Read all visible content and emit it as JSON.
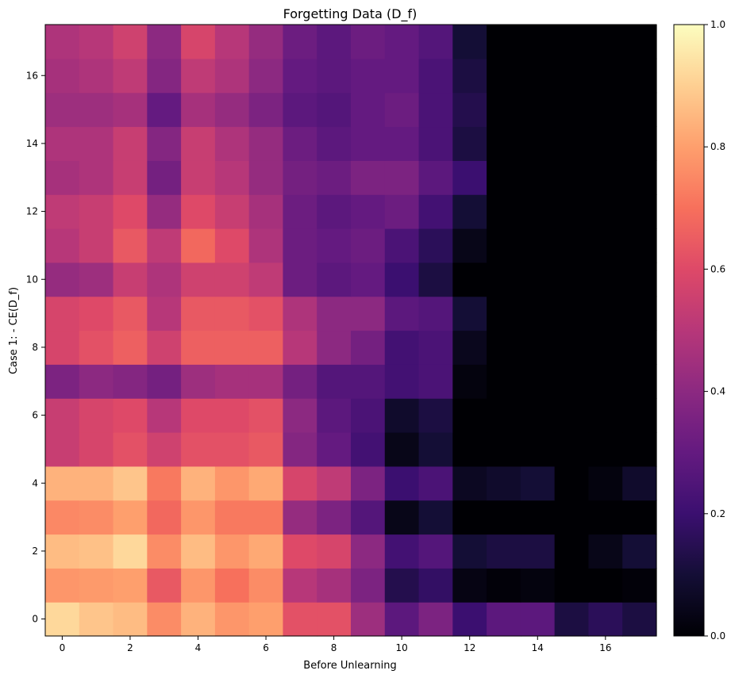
{
  "chart_data": {
    "type": "heatmap",
    "title": "Forgetting Data (D_f)",
    "xlabel": "Before Unlearning",
    "ylabel": "Case 1: - CE(D_f)",
    "colormap": "magma",
    "x_ticks": [
      "0",
      "2",
      "4",
      "6",
      "8",
      "10",
      "12",
      "14",
      "16"
    ],
    "y_ticks": [
      "0",
      "2",
      "4",
      "6",
      "8",
      "10",
      "12",
      "14",
      "16"
    ],
    "colorbar_ticks": [
      "0.0",
      "0.2",
      "0.4",
      "0.6",
      "0.8",
      "1.0"
    ],
    "vmin": 0.0,
    "vmax": 1.0,
    "rows": 18,
    "cols": 18,
    "values": [
      [
        0.92,
        0.88,
        0.86,
        0.76,
        0.84,
        0.78,
        0.8,
        0.62,
        0.62,
        0.44,
        0.28,
        0.36,
        0.2,
        0.28,
        0.28,
        0.12,
        0.16,
        0.12
      ],
      [
        0.78,
        0.79,
        0.8,
        0.64,
        0.78,
        0.7,
        0.76,
        0.5,
        0.46,
        0.36,
        0.14,
        0.18,
        0.03,
        0.01,
        0.02,
        0.0,
        0.0,
        0.01
      ],
      [
        0.86,
        0.87,
        0.92,
        0.76,
        0.86,
        0.78,
        0.82,
        0.6,
        0.58,
        0.4,
        0.22,
        0.26,
        0.1,
        0.12,
        0.12,
        0.0,
        0.04,
        0.1
      ],
      [
        0.75,
        0.76,
        0.8,
        0.68,
        0.78,
        0.72,
        0.72,
        0.42,
        0.36,
        0.26,
        0.04,
        0.1,
        0.0,
        0.0,
        0.0,
        0.0,
        0.0,
        0.0
      ],
      [
        0.84,
        0.84,
        0.88,
        0.72,
        0.84,
        0.78,
        0.82,
        0.58,
        0.52,
        0.36,
        0.2,
        0.24,
        0.06,
        0.08,
        0.1,
        0.0,
        0.02,
        0.08
      ],
      [
        0.54,
        0.58,
        0.62,
        0.56,
        0.62,
        0.62,
        0.64,
        0.38,
        0.3,
        0.22,
        0.04,
        0.1,
        0.0,
        0.0,
        0.0,
        0.0,
        0.0,
        0.0
      ],
      [
        0.54,
        0.58,
        0.6,
        0.5,
        0.6,
        0.6,
        0.62,
        0.4,
        0.28,
        0.24,
        0.08,
        0.12,
        0.0,
        0.0,
        0.0,
        0.0,
        0.0,
        0.0
      ],
      [
        0.36,
        0.4,
        0.38,
        0.34,
        0.44,
        0.46,
        0.46,
        0.34,
        0.26,
        0.26,
        0.22,
        0.24,
        0.02,
        0.0,
        0.0,
        0.0,
        0.0,
        0.0
      ],
      [
        0.58,
        0.62,
        0.66,
        0.56,
        0.66,
        0.66,
        0.66,
        0.5,
        0.4,
        0.34,
        0.22,
        0.24,
        0.05,
        0.0,
        0.0,
        0.0,
        0.0,
        0.0
      ],
      [
        0.58,
        0.6,
        0.64,
        0.5,
        0.64,
        0.64,
        0.62,
        0.48,
        0.4,
        0.4,
        0.28,
        0.26,
        0.1,
        0.0,
        0.0,
        0.0,
        0.0,
        0.0
      ],
      [
        0.42,
        0.44,
        0.54,
        0.48,
        0.56,
        0.56,
        0.52,
        0.32,
        0.28,
        0.3,
        0.2,
        0.12,
        0.0,
        0.0,
        0.0,
        0.0,
        0.0,
        0.0
      ],
      [
        0.5,
        0.54,
        0.64,
        0.52,
        0.68,
        0.6,
        0.48,
        0.32,
        0.3,
        0.32,
        0.24,
        0.16,
        0.04,
        0.0,
        0.0,
        0.0,
        0.0,
        0.0
      ],
      [
        0.52,
        0.54,
        0.6,
        0.42,
        0.6,
        0.54,
        0.46,
        0.32,
        0.28,
        0.3,
        0.32,
        0.22,
        0.1,
        0.0,
        0.0,
        0.0,
        0.0,
        0.0
      ],
      [
        0.46,
        0.48,
        0.54,
        0.34,
        0.54,
        0.5,
        0.42,
        0.34,
        0.32,
        0.36,
        0.36,
        0.28,
        0.2,
        0.0,
        0.0,
        0.0,
        0.0,
        0.0
      ],
      [
        0.48,
        0.48,
        0.54,
        0.38,
        0.54,
        0.48,
        0.42,
        0.32,
        0.28,
        0.3,
        0.3,
        0.24,
        0.12,
        0.0,
        0.0,
        0.0,
        0.0,
        0.0
      ],
      [
        0.44,
        0.44,
        0.46,
        0.3,
        0.46,
        0.42,
        0.36,
        0.28,
        0.26,
        0.3,
        0.32,
        0.24,
        0.14,
        0.0,
        0.0,
        0.0,
        0.0,
        0.0
      ],
      [
        0.46,
        0.48,
        0.52,
        0.38,
        0.52,
        0.48,
        0.4,
        0.3,
        0.28,
        0.3,
        0.3,
        0.24,
        0.12,
        0.0,
        0.0,
        0.0,
        0.0,
        0.0
      ],
      [
        0.48,
        0.5,
        0.56,
        0.4,
        0.58,
        0.5,
        0.42,
        0.32,
        0.28,
        0.32,
        0.3,
        0.26,
        0.1,
        0.0,
        0.0,
        0.0,
        0.0,
        0.0
      ]
    ]
  }
}
